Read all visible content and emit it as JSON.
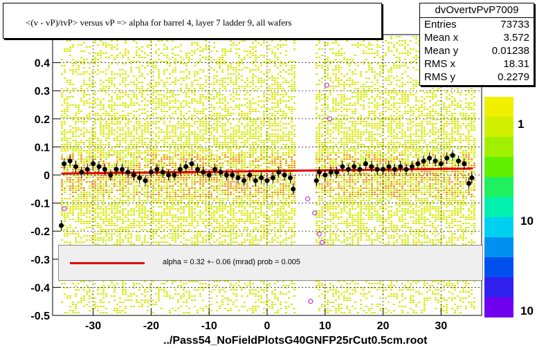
{
  "chart_data": {
    "type": "scatter",
    "title": "<(v - vP)/tvP> versus   vP => alpha for barrel 4, layer 7 ladder 9, all wafers",
    "xlim": [
      -37,
      37
    ],
    "ylim": [
      -0.5,
      0.5
    ],
    "x_ticks": [
      "-30",
      "-20",
      "-10",
      "0",
      "10",
      "20",
      "30"
    ],
    "y_ticks": [
      "-0.5",
      "-0.4",
      "-0.3",
      "-0.2",
      "-0.1",
      "0",
      "0.1",
      "0.2",
      "0.3",
      "0.4"
    ],
    "grid": true,
    "colorbar_ticks": [
      "1",
      "10",
      "10"
    ],
    "stats": {
      "name": "dvOvertvPvP7009",
      "rows": [
        {
          "label": "Entries",
          "value": "73733"
        },
        {
          "label": "Mean x",
          "value": "3.572"
        },
        {
          "label": "Mean y",
          "value": "0.01238"
        },
        {
          "label": "RMS x",
          "value": "18.31"
        },
        {
          "label": "RMS y",
          "value": "0.2279"
        }
      ]
    },
    "fit": {
      "legend_text": "alpha =    0.32 +-  0.06 (mrad) prob = 0.005",
      "x": [
        -35.5,
        35.5
      ],
      "y": [
        0.005,
        0.023
      ]
    },
    "profile_points": {
      "x": [
        -35.5,
        -35,
        -34,
        -33,
        -32,
        -31,
        -30,
        -29,
        -28,
        -27,
        -26,
        -25,
        -24,
        -23,
        -22,
        -21,
        -20,
        -19,
        -18,
        -17,
        -16,
        -15,
        -14,
        -13,
        -12,
        -11,
        -10,
        -9,
        -8,
        -7,
        -6,
        -5,
        -4,
        -3,
        -2,
        -1,
        0,
        1,
        2,
        3,
        4,
        4.5,
        8.5,
        9,
        10,
        11,
        12,
        13,
        14,
        15,
        16,
        17,
        18,
        19,
        20,
        21,
        22,
        23,
        24,
        25,
        26,
        27,
        28,
        29,
        30,
        31,
        32,
        33,
        34,
        34.8,
        35.3
      ],
      "y": [
        -0.18,
        0.04,
        0.05,
        0.03,
        0.01,
        0.02,
        0.04,
        0.03,
        0.02,
        0.0,
        0.02,
        0.02,
        0.01,
        0.0,
        -0.01,
        -0.02,
        0.01,
        0.02,
        0.01,
        0.0,
        0.0,
        0.02,
        0.03,
        0.04,
        0.02,
        0.01,
        0.0,
        0.02,
        0.01,
        0.0,
        0.0,
        -0.01,
        -0.02,
        0.0,
        -0.02,
        -0.01,
        -0.02,
        -0.01,
        0.01,
        0.0,
        -0.01,
        -0.05,
        -0.02,
        0.01,
        0.0,
        0.01,
        0.01,
        0.03,
        0.02,
        0.03,
        0.02,
        0.04,
        0.03,
        0.02,
        0.02,
        0.03,
        0.02,
        0.03,
        0.02,
        0.03,
        0.04,
        0.05,
        0.06,
        0.05,
        0.04,
        0.06,
        0.07,
        0.05,
        0.04,
        -0.03,
        -0.01
      ]
    },
    "outlier_points": {
      "x": [
        -35,
        7,
        8.2,
        9.5,
        10.3,
        10.8,
        7.5,
        9
      ],
      "y": [
        -0.12,
        -0.085,
        -0.135,
        -0.24,
        0.32,
        0.2,
        -0.45,
        -0.21
      ]
    }
  },
  "footer_text": "../Pass54_NoFieldPlotsG40GNFP25rCut0.5cm.root",
  "colors": {
    "frame": "#000000",
    "grid": "#000000",
    "fit_line": "#e00000",
    "point": "#000000",
    "outlier": "#cc33cc",
    "hist_light": "#c8f000",
    "hist_mid": "#f0e000",
    "hist_warm": "#f09000"
  }
}
